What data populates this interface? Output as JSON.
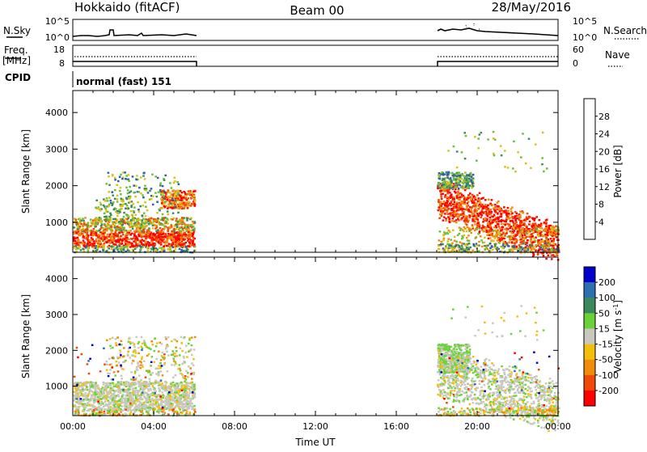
{
  "header": {
    "station": "Hokkaido (fitACF)",
    "beam": "Beam 00",
    "date": "28/May/2016"
  },
  "sky_panel": {
    "left_label": "N.Sky",
    "right_label": "N.Search",
    "left_ticks": [
      "10^5",
      "10^0"
    ],
    "right_ticks": [
      "10^5",
      "10^0"
    ]
  },
  "freq_panel": {
    "left_label_top": "Freq.",
    "left_label_bottom": "[MHz]",
    "right_label": "Nave",
    "left_ticks": [
      "18",
      "8"
    ],
    "right_ticks": [
      "60",
      "0"
    ]
  },
  "cpid_panel": {
    "label": "CPID",
    "text": "normal (fast) 151"
  },
  "colors": {
    "power_scale": [
      "#0000ff",
      "#2e5fa8",
      "#3a8a5e",
      "#6bbf3a",
      "#d8c21a",
      "#f28c0c",
      "#f04a0a",
      "#ff0000"
    ],
    "velocity_scale": [
      "#0000cc",
      "#2e6fb0",
      "#3a8a5e",
      "#6cd23a",
      "#c8c8c0",
      "#f2c00c",
      "#f28c0c",
      "#f04a0a",
      "#ff0000"
    ]
  },
  "chart_data": [
    {
      "type": "heatmap",
      "name": "power",
      "title": "",
      "ylabel": "Slant Range [km]",
      "xlim": [
        "00:00",
        "24:00"
      ],
      "ylim": [
        180,
        4600
      ],
      "y_ticks": [
        1000,
        2000,
        3000,
        4000
      ],
      "colorbar": {
        "label": "Power [dB]",
        "range": [
          0,
          32
        ],
        "ticks": [
          4,
          8,
          12,
          16,
          20,
          24,
          28
        ]
      },
      "data_gap_hours": [
        6,
        18
      ],
      "scatter_regions": [
        {
          "hours": [
            0,
            6
          ],
          "range_km": [
            400,
            800
          ],
          "level": "28-32 dB"
        },
        {
          "hours": [
            0,
            6
          ],
          "range_km": [
            800,
            1200
          ],
          "level": "12-20 dB"
        },
        {
          "hours": [
            4.5,
            6
          ],
          "range_km": [
            1400,
            1900
          ],
          "level": "20-28 dB"
        },
        {
          "hours": [
            2.5,
            5
          ],
          "range_km": [
            1900,
            2400
          ],
          "level": "8-16 dB"
        },
        {
          "hours": [
            18,
            24
          ],
          "range_km": [
            400,
            2000
          ],
          "level": "24-32 dB"
        },
        {
          "hours": [
            18,
            19.5
          ],
          "range_km": [
            2000,
            2400
          ],
          "level": "8-16 dB"
        }
      ]
    },
    {
      "type": "heatmap",
      "name": "velocity",
      "title": "",
      "ylabel": "Slant Range [km]",
      "xlabel": "Time UT",
      "xlim": [
        "00:00",
        "24:00"
      ],
      "ylim": [
        180,
        4600
      ],
      "y_ticks": [
        1000,
        2000,
        3000,
        4000
      ],
      "x_ticks": [
        "00:00",
        "04:00",
        "08:00",
        "12:00",
        "16:00",
        "20:00",
        "00:00"
      ],
      "colorbar": {
        "label": "Velocity [m s-1]",
        "ticks": [
          200,
          100,
          50,
          15,
          -15,
          -50,
          -100,
          -200
        ]
      },
      "data_gap_hours": [
        6,
        18
      ],
      "scatter_regions": [
        {
          "hours": [
            0,
            6
          ],
          "range_km": [
            400,
            2400
          ],
          "level": "-15 to 15 m/s"
        },
        {
          "hours": [
            18,
            19.5
          ],
          "range_km": [
            1500,
            2200
          ],
          "level": "15 to 50 m/s"
        },
        {
          "hours": [
            18,
            24
          ],
          "range_km": [
            400,
            2000
          ],
          "level": "-15 to 15 m/s"
        }
      ]
    }
  ]
}
